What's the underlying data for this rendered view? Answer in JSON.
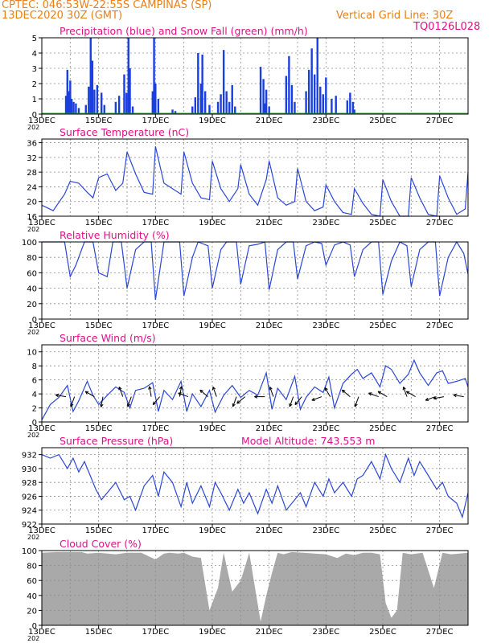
{
  "header": {
    "line1": "CPTEC:   046:53W-22:55S   CAMPINAS (SP)",
    "line2": "13DEC2020 30Z (GMT)",
    "grid_note": "Vertical Grid Line: 30Z",
    "code": "TQ0126L028",
    "color_orange": "#e8801a",
    "color_magenta": "#e0108a"
  },
  "x_axis": {
    "range": [
      0,
      15
    ],
    "tick_labels": [
      "13DEC",
      "15DEC",
      "17DEC",
      "19DEC",
      "21DEC",
      "23DEC",
      "25DEC",
      "27DEC"
    ],
    "tick_days": [
      0,
      2,
      4,
      6,
      8,
      10,
      12,
      14
    ],
    "stub_label": "202"
  },
  "panels": {
    "precip": {
      "title": "Precipitation (blue) and Snow Fall (green) (mm/h)",
      "y_ticks": [
        "0",
        "1",
        "2",
        "3",
        "4",
        "5"
      ],
      "bar_color": "#1a3fe0",
      "snow_color": "#1aa31a"
    },
    "temp": {
      "title": "Surface Temperature (nC)",
      "y_ticks": [
        "16",
        "20",
        "24",
        "28",
        "32",
        "36"
      ],
      "line_color": "#2b46d6"
    },
    "rh": {
      "title": "Relative Humidity (%)",
      "y_ticks": [
        "0",
        "20",
        "40",
        "60",
        "80",
        "100"
      ],
      "line_color": "#2b46d6"
    },
    "wind": {
      "title": "Surface Wind (m/s)",
      "y_ticks": [
        "0",
        "2",
        "4",
        "6",
        "8",
        "10"
      ],
      "line_color": "#2b46d6"
    },
    "pressure": {
      "title": "Surface Pressure (hPa)",
      "subtitle": "Model Altitude: 743.553 m",
      "y_ticks": [
        "922",
        "924",
        "926",
        "928",
        "930",
        "932"
      ],
      "line_color": "#2b46d6"
    },
    "cloud": {
      "title": "Cloud Cover (%)",
      "y_ticks": [
        "0",
        "20",
        "40",
        "60",
        "80",
        "100"
      ],
      "fill_color": "#a9a9a9"
    }
  },
  "chart_data": [
    {
      "type": "bar",
      "title": "Precipitation (blue) and Snow Fall (green) (mm/h)",
      "xlabel": "",
      "ylabel": "",
      "x_unit": "days after 13DEC2020",
      "ylim": [
        0,
        5
      ],
      "series": [
        {
          "name": "Precipitation",
          "color": "#1a3fe0",
          "points": [
            [
              0.85,
              1.2
            ],
            [
              0.9,
              2.9
            ],
            [
              0.95,
              1.5
            ],
            [
              1.0,
              2.2
            ],
            [
              1.05,
              1.0
            ],
            [
              1.12,
              0.8
            ],
            [
              1.2,
              0.7
            ],
            [
              1.3,
              0.4
            ],
            [
              1.55,
              0.6
            ],
            [
              1.65,
              1.8
            ],
            [
              1.72,
              5.0
            ],
            [
              1.78,
              3.5
            ],
            [
              1.85,
              1.6
            ],
            [
              1.95,
              1.9
            ],
            [
              2.1,
              1.4
            ],
            [
              2.2,
              0.6
            ],
            [
              2.6,
              0.8
            ],
            [
              2.72,
              1.2
            ],
            [
              2.9,
              2.6
            ],
            [
              2.98,
              1.4
            ],
            [
              3.05,
              5.0
            ],
            [
              3.1,
              3.0
            ],
            [
              3.2,
              0.5
            ],
            [
              3.9,
              1.5
            ],
            [
              3.95,
              5.0
            ],
            [
              4.0,
              2.0
            ],
            [
              4.1,
              1.0
            ],
            [
              4.6,
              0.3
            ],
            [
              4.7,
              0.2
            ],
            [
              5.3,
              0.5
            ],
            [
              5.4,
              1.1
            ],
            [
              5.5,
              4.0
            ],
            [
              5.6,
              2.0
            ],
            [
              5.65,
              3.9
            ],
            [
              5.75,
              1.5
            ],
            [
              5.9,
              0.6
            ],
            [
              6.2,
              0.8
            ],
            [
              6.3,
              1.3
            ],
            [
              6.4,
              4.2
            ],
            [
              6.5,
              1.5
            ],
            [
              6.6,
              0.8
            ],
            [
              6.7,
              1.9
            ],
            [
              6.8,
              0.5
            ],
            [
              7.7,
              3.1
            ],
            [
              7.8,
              2.3
            ],
            [
              7.85,
              0.7
            ],
            [
              7.9,
              1.6
            ],
            [
              8.0,
              0.5
            ],
            [
              8.6,
              2.5
            ],
            [
              8.7,
              3.8
            ],
            [
              8.8,
              1.9
            ],
            [
              8.9,
              0.8
            ],
            [
              9.3,
              1.5
            ],
            [
              9.4,
              2.9
            ],
            [
              9.5,
              4.3
            ],
            [
              9.6,
              2.6
            ],
            [
              9.7,
              5.0
            ],
            [
              9.8,
              1.8
            ],
            [
              9.9,
              1.3
            ],
            [
              10.0,
              2.4
            ],
            [
              10.2,
              1.0
            ],
            [
              10.35,
              1.2
            ],
            [
              10.75,
              0.9
            ],
            [
              10.85,
              1.4
            ],
            [
              10.95,
              0.8
            ],
            [
              11.0,
              0.3
            ]
          ]
        },
        {
          "name": "Snow Fall",
          "color": "#1aa31a",
          "values_all": 0
        }
      ]
    },
    {
      "type": "line",
      "title": "Surface Temperature (nC)",
      "x_unit": "days after 13DEC2020",
      "ylim": [
        16,
        37
      ],
      "x": [
        0,
        0.4,
        0.8,
        1.0,
        1.3,
        1.6,
        1.8,
        2.0,
        2.3,
        2.6,
        2.85,
        3.0,
        3.3,
        3.6,
        3.9,
        4.0,
        4.3,
        4.6,
        4.9,
        5.0,
        5.3,
        5.6,
        5.9,
        6.0,
        6.3,
        6.6,
        6.9,
        7.0,
        7.3,
        7.6,
        7.9,
        8.0,
        8.3,
        8.6,
        8.9,
        9.0,
        9.3,
        9.6,
        9.9,
        10.0,
        10.3,
        10.6,
        10.9,
        11.0,
        11.3,
        11.6,
        11.9,
        12.0,
        12.3,
        12.6,
        12.9,
        13.0,
        13.3,
        13.6,
        13.9,
        14.0,
        14.3,
        14.6,
        14.9,
        15.0
      ],
      "y": [
        19,
        17.5,
        22,
        25.5,
        25,
        22.5,
        21,
        26.5,
        27.5,
        23,
        25,
        33.5,
        27.5,
        22.5,
        22,
        35,
        25,
        23.5,
        22,
        33.5,
        25,
        21,
        20.5,
        31,
        23.5,
        20,
        23.5,
        30,
        22,
        19,
        26,
        31,
        21,
        19,
        20,
        29,
        20,
        17.5,
        18.5,
        24.5,
        20,
        17,
        16.5,
        23.5,
        19.5,
        16.5,
        16,
        26,
        20,
        16,
        16,
        26.5,
        21,
        16.5,
        16,
        27,
        21,
        16.5,
        18,
        28
      ]
    },
    {
      "type": "line",
      "title": "Relative Humidity (%)",
      "x_unit": "days after 13DEC2020",
      "ylim": [
        0,
        100
      ],
      "x": [
        0,
        0.3,
        0.6,
        0.8,
        1.0,
        1.2,
        1.5,
        1.8,
        2.0,
        2.3,
        2.5,
        2.8,
        3.0,
        3.3,
        3.6,
        3.85,
        4.0,
        4.3,
        4.5,
        4.85,
        5.0,
        5.3,
        5.5,
        5.85,
        6.0,
        6.3,
        6.5,
        6.85,
        7.0,
        7.3,
        7.6,
        7.85,
        8.0,
        8.3,
        8.6,
        8.85,
        9.0,
        9.3,
        9.6,
        9.85,
        10.0,
        10.3,
        10.6,
        10.85,
        11.0,
        11.3,
        11.6,
        11.85,
        12.0,
        12.3,
        12.6,
        12.85,
        13.0,
        13.3,
        13.6,
        13.85,
        14.0,
        14.3,
        14.6,
        14.85,
        15.0
      ],
      "y": [
        100,
        100,
        100,
        100,
        55,
        70,
        100,
        100,
        60,
        55,
        100,
        100,
        40,
        90,
        100,
        100,
        25,
        100,
        100,
        100,
        30,
        80,
        100,
        95,
        40,
        90,
        100,
        100,
        45,
        95,
        97,
        100,
        38,
        90,
        100,
        100,
        52,
        95,
        100,
        98,
        70,
        96,
        100,
        96,
        55,
        90,
        100,
        100,
        32,
        75,
        100,
        95,
        42,
        90,
        100,
        100,
        30,
        80,
        100,
        85,
        58
      ]
    },
    {
      "type": "line",
      "title": "Surface Wind (m/s)",
      "x_unit": "days after 13DEC2020",
      "ylim": [
        0,
        10
      ],
      "x": [
        0,
        0.3,
        0.6,
        0.9,
        1.1,
        1.3,
        1.6,
        1.8,
        2.0,
        2.3,
        2.6,
        2.9,
        3.1,
        3.3,
        3.6,
        3.9,
        4.1,
        4.3,
        4.6,
        4.9,
        5.1,
        5.3,
        5.6,
        5.9,
        6.1,
        6.4,
        6.7,
        7.0,
        7.3,
        7.6,
        7.9,
        8.1,
        8.3,
        8.6,
        8.9,
        9.1,
        9.3,
        9.6,
        9.9,
        10.1,
        10.3,
        10.6,
        10.9,
        11.1,
        11.3,
        11.6,
        11.9,
        12.1,
        12.3,
        12.6,
        12.9,
        13.1,
        13.3,
        13.6,
        13.9,
        14.1,
        14.3,
        14.6,
        14.9,
        15.0
      ],
      "y": [
        0.3,
        2.5,
        3.5,
        5.2,
        1.5,
        3.0,
        5.8,
        3.8,
        2.5,
        3.8,
        5.0,
        4.2,
        2.0,
        4.5,
        4.8,
        5.6,
        1.5,
        4.5,
        3.2,
        5.8,
        1.5,
        4.0,
        2.2,
        4.5,
        1.4,
        3.8,
        5.2,
        3.5,
        4.5,
        3.8,
        7.0,
        1.8,
        4.8,
        3.2,
        6.5,
        1.8,
        3.5,
        5.0,
        4.2,
        6.4,
        2.0,
        5.5,
        6.8,
        7.5,
        6.2,
        7.0,
        5.0,
        8.0,
        7.5,
        5.5,
        6.8,
        8.8,
        7.0,
        5.2,
        7.0,
        7.3,
        5.5,
        5.8,
        6.2,
        5.0
      ]
    },
    {
      "type": "line",
      "title": "Surface Pressure (hPa)",
      "x_unit": "days after 13DEC2020",
      "ylim": [
        922,
        933
      ],
      "x": [
        0,
        0.3,
        0.6,
        0.9,
        1.1,
        1.3,
        1.5,
        1.7,
        1.9,
        2.1,
        2.3,
        2.6,
        2.9,
        3.1,
        3.3,
        3.6,
        3.9,
        4.1,
        4.3,
        4.6,
        4.9,
        5.1,
        5.3,
        5.6,
        5.9,
        6.1,
        6.3,
        6.6,
        6.9,
        7.1,
        7.3,
        7.6,
        7.9,
        8.1,
        8.3,
        8.6,
        8.9,
        9.1,
        9.3,
        9.6,
        9.9,
        10.1,
        10.3,
        10.6,
        10.9,
        11.1,
        11.3,
        11.6,
        11.9,
        12.1,
        12.3,
        12.6,
        12.9,
        13.1,
        13.3,
        13.6,
        13.9,
        14.1,
        14.3,
        14.6,
        14.8,
        15.0
      ],
      "y": [
        932,
        931.5,
        932,
        930,
        931.5,
        929.5,
        931,
        929,
        927,
        925.5,
        926.5,
        928,
        925.5,
        926,
        924,
        927.5,
        929,
        926,
        929.5,
        928,
        924.5,
        928,
        925,
        927.5,
        924.5,
        928,
        926.5,
        924,
        927,
        925,
        926.5,
        923.5,
        927,
        925,
        927.5,
        924,
        925.5,
        926.5,
        924.5,
        928,
        926,
        928.5,
        926.5,
        928,
        926,
        928.5,
        929,
        931,
        928.5,
        932,
        930,
        928,
        931.5,
        929,
        931,
        929,
        927,
        928,
        926,
        925,
        923,
        926.5
      ]
    },
    {
      "type": "area",
      "title": "Cloud Cover (%)",
      "x_unit": "days after 13DEC2020",
      "ylim": [
        0,
        100
      ],
      "x": [
        0,
        0.5,
        1.0,
        1.4,
        1.6,
        2.0,
        2.6,
        3.0,
        3.5,
        4.0,
        4.3,
        4.5,
        4.8,
        5.0,
        5.3,
        5.6,
        5.9,
        6.0,
        6.2,
        6.4,
        6.7,
        7.0,
        7.3,
        7.7,
        7.9,
        8.1,
        8.3,
        8.5,
        8.8,
        9.2,
        9.6,
        10.0,
        10.4,
        10.7,
        11.0,
        11.3,
        11.6,
        11.9,
        12.1,
        12.3,
        12.5,
        12.7,
        13.0,
        13.4,
        13.8,
        14.1,
        14.4,
        14.7,
        15.0
      ],
      "y": [
        97,
        98,
        98,
        98,
        96,
        97,
        95,
        97,
        97,
        88,
        96,
        97,
        96,
        97,
        92,
        90,
        20,
        30,
        50,
        97,
        45,
        60,
        97,
        5,
        40,
        70,
        97,
        95,
        98,
        97,
        96,
        95,
        90,
        96,
        94,
        97,
        97,
        95,
        30,
        10,
        20,
        97,
        95,
        97,
        50,
        97,
        95,
        96,
        97
      ]
    }
  ],
  "wind_arrows": {
    "color": "#000000",
    "points": [
      [
        0.85,
        3.6
      ],
      [
        1.15,
        3.6
      ],
      [
        1.85,
        3.6
      ],
      [
        2.15,
        3.6
      ],
      [
        2.85,
        3.6
      ],
      [
        3.15,
        3.6
      ],
      [
        3.85,
        3.6
      ],
      [
        4.15,
        3.6
      ],
      [
        4.85,
        3.6
      ],
      [
        5.15,
        3.6
      ],
      [
        5.85,
        3.6
      ],
      [
        6.15,
        3.6
      ],
      [
        6.85,
        3.6
      ],
      [
        7.15,
        3.6
      ],
      [
        7.85,
        3.6
      ],
      [
        8.15,
        3.6
      ],
      [
        8.85,
        3.6
      ],
      [
        9.15,
        3.6
      ],
      [
        9.85,
        3.6
      ],
      [
        10.15,
        3.6
      ],
      [
        10.85,
        3.6
      ],
      [
        11.15,
        3.6
      ],
      [
        11.85,
        3.6
      ],
      [
        12.15,
        3.6
      ],
      [
        12.85,
        3.6
      ],
      [
        13.15,
        3.6
      ],
      [
        13.85,
        3.6
      ],
      [
        14.15,
        3.6
      ],
      [
        14.85,
        3.6
      ]
    ],
    "angles_deg": [
      170,
      250,
      150,
      260,
      110,
      250,
      100,
      230,
      80,
      160,
      140,
      110,
      250,
      220,
      180,
      110,
      250,
      230,
      200,
      120,
      140,
      250,
      160,
      150,
      110,
      150,
      200,
      190,
      170
    ]
  }
}
